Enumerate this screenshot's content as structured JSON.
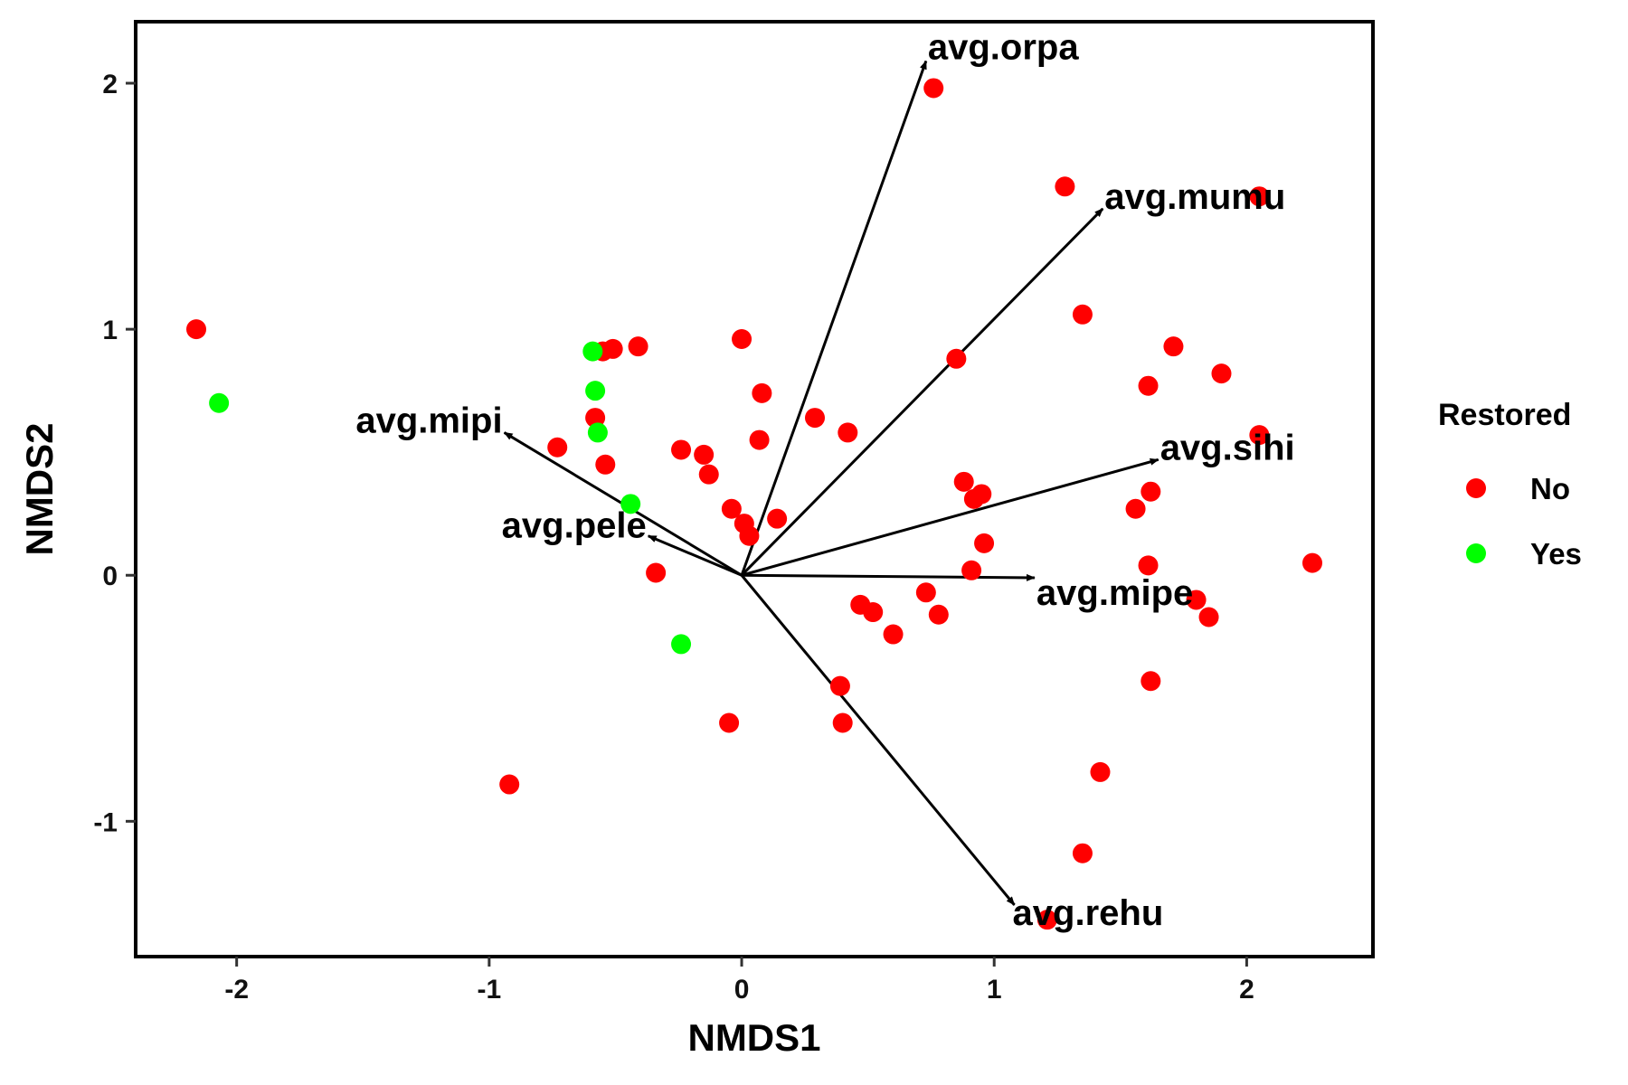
{
  "chart_data": {
    "type": "scatter",
    "xlabel": "NMDS1",
    "ylabel": "NMDS2",
    "xlim": [
      -2.4,
      2.5
    ],
    "ylim": [
      -1.55,
      2.25
    ],
    "xticks": [
      -2,
      -1,
      0,
      1,
      2
    ],
    "yticks": [
      -1,
      0,
      1,
      2
    ],
    "tick_labels_x": [
      "-2",
      "-1",
      "0",
      "1",
      "2"
    ],
    "tick_labels_y": [
      "-1",
      "0",
      "1",
      "2"
    ],
    "grid": false,
    "legend": {
      "title": "Restored",
      "position": "right",
      "entries": [
        {
          "label": "No",
          "color": "#ff0000"
        },
        {
          "label": "Yes",
          "color": "#00ff00"
        }
      ]
    },
    "series": [
      {
        "name": "No",
        "color": "#ff0000",
        "points": [
          [
            -2.16,
            1.0
          ],
          [
            -0.92,
            -0.85
          ],
          [
            -0.73,
            0.52
          ],
          [
            -0.58,
            0.64
          ],
          [
            -0.55,
            0.91
          ],
          [
            -0.51,
            0.92
          ],
          [
            -0.41,
            0.93
          ],
          [
            -0.54,
            0.45
          ],
          [
            -0.34,
            0.01
          ],
          [
            -0.24,
            0.51
          ],
          [
            -0.15,
            0.49
          ],
          [
            -0.13,
            0.41
          ],
          [
            -0.04,
            0.27
          ],
          [
            0.0,
            0.96
          ],
          [
            0.01,
            0.21
          ],
          [
            0.03,
            0.16
          ],
          [
            0.07,
            0.55
          ],
          [
            0.08,
            0.74
          ],
          [
            0.14,
            0.23
          ],
          [
            -0.05,
            -0.6
          ],
          [
            0.29,
            0.64
          ],
          [
            0.42,
            0.58
          ],
          [
            0.39,
            -0.45
          ],
          [
            0.4,
            -0.6
          ],
          [
            0.47,
            -0.12
          ],
          [
            0.52,
            -0.15
          ],
          [
            0.6,
            -0.24
          ],
          [
            0.73,
            -0.07
          ],
          [
            0.78,
            -0.16
          ],
          [
            0.76,
            1.98
          ],
          [
            0.85,
            0.88
          ],
          [
            0.88,
            0.38
          ],
          [
            0.91,
            0.02
          ],
          [
            0.92,
            0.31
          ],
          [
            0.95,
            0.33
          ],
          [
            0.96,
            0.13
          ],
          [
            1.28,
            1.58
          ],
          [
            1.35,
            1.06
          ],
          [
            1.35,
            -1.13
          ],
          [
            1.42,
            -0.8
          ],
          [
            1.21,
            -1.4
          ],
          [
            1.56,
            0.27
          ],
          [
            1.61,
            0.77
          ],
          [
            1.62,
            0.34
          ],
          [
            1.61,
            0.04
          ],
          [
            1.62,
            -0.43
          ],
          [
            1.71,
            0.93
          ],
          [
            1.8,
            -0.1
          ],
          [
            1.85,
            -0.17
          ],
          [
            1.9,
            0.82
          ],
          [
            2.05,
            1.54
          ],
          [
            2.05,
            0.57
          ],
          [
            2.26,
            0.05
          ]
        ]
      },
      {
        "name": "Yes",
        "color": "#00ff00",
        "points": [
          [
            -2.07,
            0.7
          ],
          [
            -0.59,
            0.91
          ],
          [
            -0.58,
            0.75
          ],
          [
            -0.57,
            0.58
          ],
          [
            -0.44,
            0.29
          ],
          [
            -0.24,
            -0.28
          ]
        ]
      }
    ],
    "vectors": [
      {
        "label": "avg.orpa",
        "x": 0.73,
        "y": 2.09
      },
      {
        "label": "avg.mumu",
        "x": 1.43,
        "y": 1.49
      },
      {
        "label": "avg.sihi",
        "x": 1.65,
        "y": 0.47
      },
      {
        "label": "avg.mipe",
        "x": 1.16,
        "y": -0.01
      },
      {
        "label": "avg.rehu",
        "x": 1.08,
        "y": -1.34
      },
      {
        "label": "avg.mipi",
        "x": -0.94,
        "y": 0.58
      },
      {
        "label": "avg.pele",
        "x": -0.37,
        "y": 0.16
      }
    ]
  }
}
